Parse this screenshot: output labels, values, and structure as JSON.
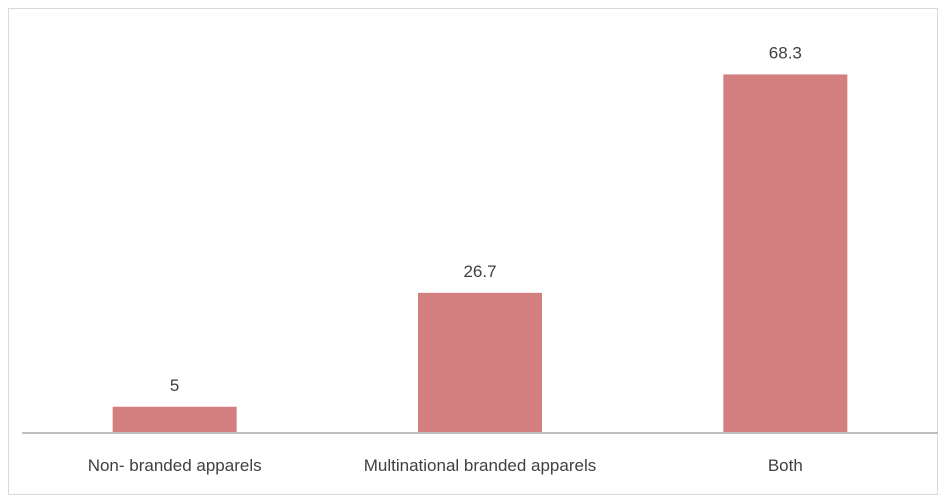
{
  "chart_data": {
    "type": "bar",
    "categories": [
      "Non- branded apparels",
      "Multinational branded apparels",
      "Both"
    ],
    "values": [
      5,
      26.7,
      68.3
    ],
    "value_labels": [
      "5",
      "26.7",
      "68.3"
    ],
    "title": "",
    "xlabel": "",
    "ylabel": "",
    "ylim": [
      0,
      80
    ],
    "grid": false,
    "legend": "none",
    "bar_color": "#d47f7f",
    "axis_color": "#bfbfbf"
  }
}
